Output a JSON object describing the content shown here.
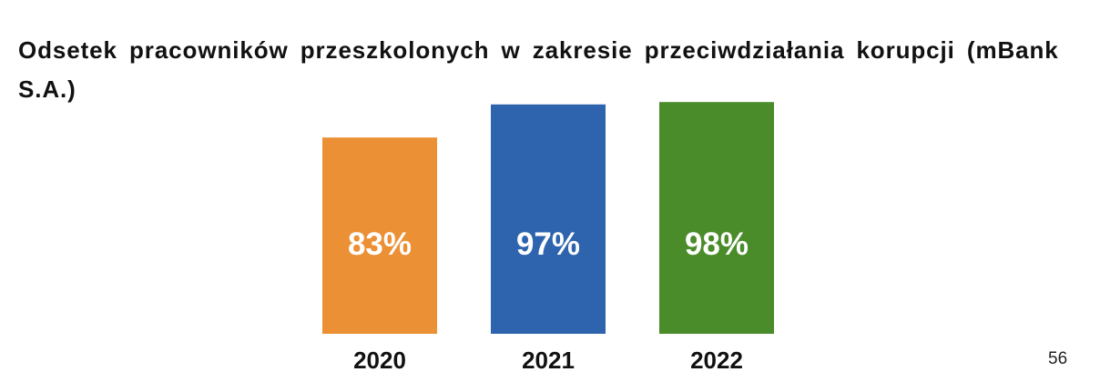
{
  "title": "Odsetek pracowników przeszkolonych w zakresie przeciwdziałania korupcji (mBank S.A.)",
  "page_number": "56",
  "chart_data": {
    "type": "bar",
    "title": "Odsetek pracowników przeszkolonych w zakresie przeciwdziałania korupcji (mBank S.A.)",
    "categories": [
      "2020",
      "2021",
      "2022"
    ],
    "values": [
      83,
      97,
      98
    ],
    "value_labels": [
      "83%",
      "97%",
      "98%"
    ],
    "colors": [
      "#EC9035",
      "#2E64AE",
      "#4A8C2A"
    ],
    "xlabel": "",
    "ylabel": "",
    "grid": false,
    "legend": "none"
  }
}
